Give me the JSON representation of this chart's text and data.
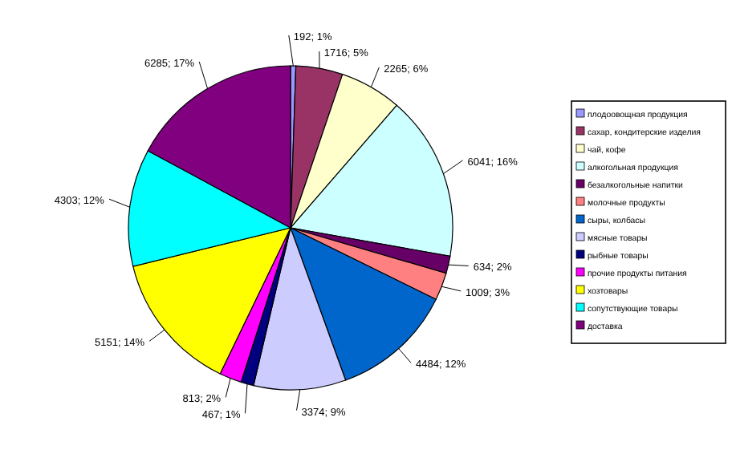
{
  "chart_data": {
    "type": "pie",
    "categories": [
      "плодоовощная продукция",
      "сахар, кондитерские изделия",
      "чай, кофе",
      "алкогольная продукция",
      "безалкогольные напитки",
      "молочные продукты",
      "сыры, колбасы",
      "мясные товары",
      "рыбные товары",
      "прочие продукты питания",
      "хозтовары",
      "сопутствующие товары",
      "доставка"
    ],
    "values": [
      192,
      1716,
      2265,
      6041,
      634,
      1009,
      4484,
      3374,
      467,
      813,
      5151,
      4303,
      6285
    ],
    "value_labels": [
      "192; 1%",
      "1716; 5%",
      "2265; 6%",
      "6041; 16%",
      "634; 2%",
      "1009; 3%",
      "4484; 12%",
      "3374; 9%",
      "467; 1%",
      "813; 2%",
      "5151; 14%",
      "4303; 12%",
      "6285; 17%"
    ],
    "colors": [
      "#9999ff",
      "#993366",
      "#ffffcc",
      "#ccffff",
      "#660066",
      "#ff8080",
      "#0066cc",
      "#ccccff",
      "#000080",
      "#ff00ff",
      "#ffff00",
      "#00ffff",
      "#800080"
    ],
    "legend": "right"
  }
}
